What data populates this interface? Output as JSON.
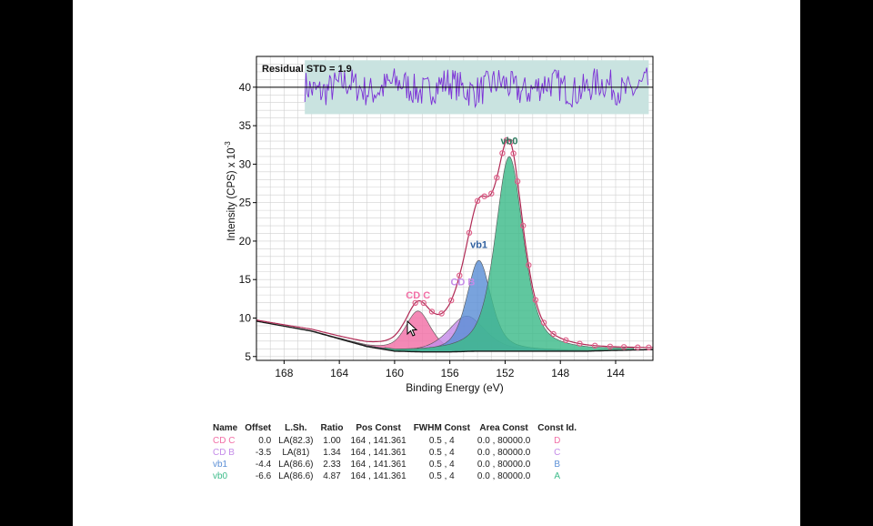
{
  "colors": {
    "page": "#ffffff",
    "frame": "#000000",
    "grid": "#d0d0d0",
    "residual_band": "#c9e3e0",
    "residual_line": "#7b2fd6",
    "envelope": "#b02a55",
    "data_points": "#e0608a",
    "background_line": "#1a1a1a",
    "cd_c": "#f26fa6",
    "cd_b": "#c58be8",
    "vb1": "#5b8fd6",
    "vb0": "#3dbb8a"
  },
  "chart_data": {
    "type": "line",
    "title": "",
    "xlabel": "Binding Energy (eV)",
    "ylabel_base": "Intensity (CPS) x 10",
    "ylabel_exp": "-3",
    "x_reversed": true,
    "xlim": [
      170,
      141.3
    ],
    "ylim": [
      4.5,
      44
    ],
    "x_ticks": [
      168,
      164,
      160,
      156,
      152,
      148,
      144
    ],
    "y_ticks": [
      5,
      10,
      15,
      20,
      25,
      30,
      35,
      40
    ],
    "grid": true,
    "residual": {
      "label": "Residual STD = 1.9",
      "baseline": 40,
      "band": [
        36.5,
        43.5
      ],
      "x_range": [
        166.5,
        141.6
      ]
    },
    "background": {
      "x": [
        170,
        166,
        162,
        160,
        158,
        156,
        154,
        152,
        150,
        148,
        146,
        144,
        141.3
      ],
      "y": [
        9.6,
        8.3,
        6.3,
        5.7,
        5.6,
        5.6,
        5.7,
        5.7,
        5.7,
        5.7,
        5.7,
        5.8,
        5.9
      ]
    },
    "peaks": [
      {
        "name": "CD C",
        "label": "CD C",
        "center": 158.3,
        "height": 5.3,
        "fwhm": 2.2
      },
      {
        "name": "CD B",
        "label": "CD B",
        "center": 154.8,
        "height": 4.6,
        "fwhm": 3.2
      },
      {
        "name": "vb1",
        "label": "vb1",
        "center": 153.9,
        "height": 11.8,
        "fwhm": 2.1
      },
      {
        "name": "vb0",
        "label": "vb0",
        "center": 151.7,
        "height": 25.3,
        "fwhm": 2.4
      }
    ],
    "data_points_x": [
      158.5,
      157.9,
      157.3,
      156.6,
      155.9,
      155.3,
      154.6,
      154.0,
      153.5,
      153.0,
      152.6,
      152.2,
      151.9,
      151.6,
      151.4,
      151.1,
      150.7,
      150.3,
      149.8,
      149.2,
      148.5,
      147.6,
      146.6,
      145.5,
      144.4,
      143.4,
      142.4,
      141.6
    ]
  },
  "table": {
    "headers": [
      "Name",
      "Offset",
      "L.Sh.",
      "Ratio",
      "Pos Const",
      "FWHM Const",
      "Area Const",
      "Const Id."
    ],
    "rows": [
      {
        "name": "CD C",
        "offset": "0.0",
        "lsh": "LA(82.3)",
        "ratio": "1.00",
        "pos": "164 , 141.361",
        "fwhm": "0.5 , 4",
        "area": "0.0 , 80000.0",
        "id": "D"
      },
      {
        "name": "CD B",
        "offset": "-3.5",
        "lsh": "LA(81)",
        "ratio": "1.34",
        "pos": "164 , 141.361",
        "fwhm": "0.5 , 4",
        "area": "0.0 , 80000.0",
        "id": "C"
      },
      {
        "name": "vb1",
        "offset": "-4.4",
        "lsh": "LA(86.6)",
        "ratio": "2.33",
        "pos": "164 , 141.361",
        "fwhm": "0.5 , 4",
        "area": "0.0 , 80000.0",
        "id": "B"
      },
      {
        "name": "vb0",
        "offset": "-6.6",
        "lsh": "LA(86.6)",
        "ratio": "4.87",
        "pos": "164 , 141.361",
        "fwhm": "0.5 , 4",
        "area": "0.0 , 80000.0",
        "id": "A"
      }
    ]
  }
}
